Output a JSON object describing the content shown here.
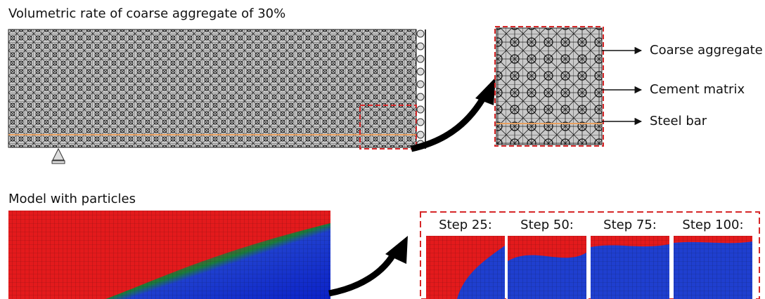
{
  "top": {
    "title": "Volumetric rate of coarse aggregate of 30%",
    "labels": [
      "Coarse aggregate",
      "Cement matrix",
      "Steel bar"
    ]
  },
  "bottom": {
    "title": "Model with particles",
    "steps": [
      "Step 25:",
      "Step 50:",
      "Step 75:",
      "Step 100:"
    ]
  }
}
